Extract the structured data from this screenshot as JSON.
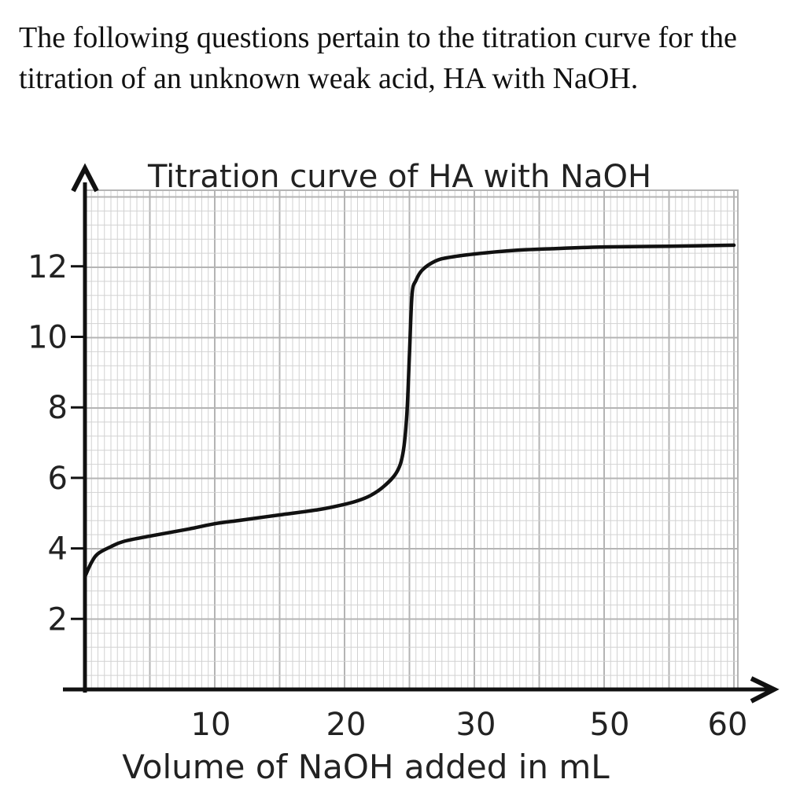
{
  "question": {
    "text": "The following questions pertain to the titration curve for the titration of an unknown weak acid, HA with NaOH."
  },
  "colors": {
    "grid_minor": "#d2d2d2",
    "grid_major": "#b4b4b4",
    "axis": "#111111",
    "curve": "#111111"
  },
  "chart_data": {
    "type": "line",
    "title": "Titration curve of HA with NaOH",
    "xlabel": "Volume of  NaOH added in mL",
    "ylabel": "",
    "x_ticks": [
      "10",
      "20",
      "30",
      "50",
      "60"
    ],
    "y_ticks": [
      "2",
      "4",
      "6",
      "8",
      "10",
      "12"
    ],
    "grid": true,
    "series": [
      {
        "points": [
          [
            0,
            3.2
          ],
          [
            0.5,
            3.6
          ],
          [
            1,
            3.85
          ],
          [
            2,
            4.05
          ],
          [
            3,
            4.2
          ],
          [
            5,
            4.35
          ],
          [
            8,
            4.55
          ],
          [
            10,
            4.7
          ],
          [
            12,
            4.8
          ],
          [
            15,
            4.95
          ],
          [
            18,
            5.1
          ],
          [
            20,
            5.25
          ],
          [
            21,
            5.35
          ],
          [
            22,
            5.5
          ],
          [
            23,
            5.75
          ],
          [
            24,
            6.15
          ],
          [
            24.5,
            6.7
          ],
          [
            24.8,
            7.8
          ],
          [
            25,
            9.5
          ],
          [
            25.2,
            11.2
          ],
          [
            25.5,
            11.6
          ],
          [
            26,
            11.9
          ],
          [
            27,
            12.15
          ],
          [
            28,
            12.25
          ],
          [
            30,
            12.35
          ],
          [
            33,
            12.45
          ],
          [
            36,
            12.5
          ],
          [
            40,
            12.55
          ],
          [
            45,
            12.57
          ],
          [
            50,
            12.6
          ]
        ]
      }
    ]
  }
}
